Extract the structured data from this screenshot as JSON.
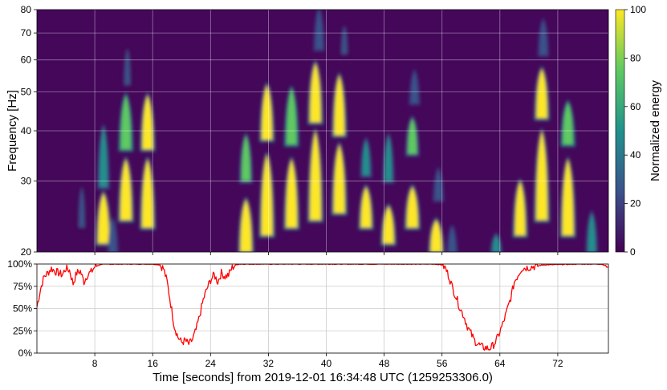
{
  "chart_data": [
    {
      "type": "heatmap",
      "title": "",
      "xlabel": "",
      "ylabel": "Frequency [Hz]",
      "x_range": [
        0,
        79
      ],
      "ylim": [
        20,
        80
      ],
      "y_scale": "log",
      "yticks": [
        20,
        30,
        40,
        50,
        60,
        70,
        80
      ],
      "xticks": [
        8,
        16,
        24,
        32,
        40,
        48,
        56,
        64,
        72
      ],
      "grid": true,
      "colormap": "viridis",
      "background_color": "#44075a",
      "colorbar": {
        "label": "Normalized energy",
        "range": [
          0,
          100
        ],
        "ticks": [
          0,
          20,
          40,
          60,
          80,
          100
        ],
        "stops": [
          "#440154",
          "#3b528b",
          "#21918c",
          "#5ec962",
          "#fde725"
        ]
      },
      "chirps": [
        {
          "t": 9.2,
          "f0": 21,
          "f1": 28,
          "e": 1.0
        },
        {
          "t": 9.2,
          "f0": 29,
          "f1": 41,
          "e": 0.55
        },
        {
          "t": 12.3,
          "f0": 24,
          "f1": 34,
          "e": 1.0
        },
        {
          "t": 12.3,
          "f0": 36,
          "f1": 49,
          "e": 0.85
        },
        {
          "t": 12.5,
          "f0": 52,
          "f1": 64,
          "e": 0.25
        },
        {
          "t": 15.3,
          "f0": 23,
          "f1": 34,
          "e": 1.0
        },
        {
          "t": 15.3,
          "f0": 36,
          "f1": 49,
          "e": 0.9
        },
        {
          "t": 10.5,
          "f0": 20,
          "f1": 24,
          "e": 0.3
        },
        {
          "t": 6.2,
          "f0": 23,
          "f1": 29,
          "e": 0.25
        },
        {
          "t": 28.9,
          "f0": 20,
          "f1": 27,
          "e": 1.0
        },
        {
          "t": 28.9,
          "f0": 30,
          "f1": 39,
          "e": 0.7
        },
        {
          "t": 31.8,
          "f0": 22,
          "f1": 35,
          "e": 1.0
        },
        {
          "t": 31.8,
          "f0": 38,
          "f1": 52,
          "e": 0.9
        },
        {
          "t": 35.2,
          "f0": 23,
          "f1": 34,
          "e": 1.0
        },
        {
          "t": 35.2,
          "f0": 37,
          "f1": 51,
          "e": 0.85
        },
        {
          "t": 38.5,
          "f0": 24,
          "f1": 40,
          "e": 1.0
        },
        {
          "t": 38.5,
          "f0": 42,
          "f1": 59,
          "e": 0.95
        },
        {
          "t": 39.0,
          "f0": 64,
          "f1": 80,
          "e": 0.3
        },
        {
          "t": 41.8,
          "f0": 25,
          "f1": 37,
          "e": 1.0
        },
        {
          "t": 41.8,
          "f0": 39,
          "f1": 55,
          "e": 0.9
        },
        {
          "t": 42.5,
          "f0": 62,
          "f1": 73,
          "e": 0.25
        },
        {
          "t": 45.5,
          "f0": 23,
          "f1": 29,
          "e": 0.9
        },
        {
          "t": 45.5,
          "f0": 31,
          "f1": 38,
          "e": 0.45
        },
        {
          "t": 48.6,
          "f0": 21,
          "f1": 26,
          "e": 0.95
        },
        {
          "t": 48.6,
          "f0": 30,
          "f1": 39,
          "e": 0.45
        },
        {
          "t": 51.9,
          "f0": 23,
          "f1": 29,
          "e": 1.0
        },
        {
          "t": 51.9,
          "f0": 35,
          "f1": 43,
          "e": 0.75
        },
        {
          "t": 52.2,
          "f0": 47,
          "f1": 56,
          "e": 0.3
        },
        {
          "t": 55.2,
          "f0": 20,
          "f1": 24,
          "e": 1.0
        },
        {
          "t": 55.5,
          "f0": 27,
          "f1": 32,
          "e": 0.3
        },
        {
          "t": 63.5,
          "f0": 20,
          "f1": 22,
          "e": 0.5
        },
        {
          "t": 66.8,
          "f0": 22,
          "f1": 30,
          "e": 0.9
        },
        {
          "t": 69.8,
          "f0": 24,
          "f1": 40,
          "e": 1.0
        },
        {
          "t": 69.8,
          "f0": 43,
          "f1": 57,
          "e": 0.95
        },
        {
          "t": 70.0,
          "f0": 62,
          "f1": 75,
          "e": 0.3
        },
        {
          "t": 73.4,
          "f0": 22,
          "f1": 34,
          "e": 1.0
        },
        {
          "t": 73.4,
          "f0": 37,
          "f1": 47,
          "e": 0.85
        },
        {
          "t": 76.7,
          "f0": 20,
          "f1": 25,
          "e": 0.5
        },
        {
          "t": 57.4,
          "f0": 20,
          "f1": 23,
          "e": 0.3
        }
      ]
    },
    {
      "type": "line",
      "title": "",
      "xlabel": "Time [seconds] from 2019-12-01 16:34:48 UTC (1259253306.0)",
      "ylabel": "",
      "xlim": [
        0,
        79
      ],
      "ylim": [
        0,
        100
      ],
      "xticks": [
        8,
        16,
        24,
        32,
        40,
        48,
        56,
        64,
        72
      ],
      "yticks": [
        "0%",
        "25%",
        "50%",
        "75%",
        "100%"
      ],
      "grid": true,
      "color": "#ff0000",
      "series": [
        {
          "x": [
            0,
            0.5,
            1,
            1.5,
            2,
            2.5,
            3,
            3.5,
            4,
            4.5,
            5,
            5.5,
            6,
            6.5,
            7,
            7.5,
            8,
            9,
            10,
            12,
            14,
            16,
            17,
            17.5,
            18,
            18.5,
            19,
            19.5,
            20,
            20.5,
            21,
            21.5,
            22,
            22.5,
            23,
            23.5,
            24,
            24.5,
            25,
            25.5,
            26,
            26.5,
            27,
            27.5,
            28,
            29,
            32,
            40,
            48,
            55,
            56,
            56.5,
            57,
            57.5,
            58,
            58.5,
            59,
            59.5,
            60,
            60.5,
            61,
            61.5,
            62,
            62.5,
            63,
            63.5,
            64,
            64.5,
            65,
            65.5,
            66,
            67,
            70,
            75,
            77,
            78,
            79
          ],
          "values": [
            52,
            72,
            86,
            90,
            95,
            92,
            90,
            88,
            95,
            93,
            78,
            90,
            92,
            80,
            88,
            91,
            97,
            100,
            100,
            100,
            100,
            100,
            99,
            95,
            80,
            55,
            30,
            18,
            12,
            14,
            10,
            15,
            26,
            42,
            60,
            72,
            82,
            88,
            80,
            90,
            86,
            88,
            96,
            99,
            100,
            100,
            100,
            100,
            100,
            100,
            99,
            95,
            85,
            72,
            62,
            50,
            42,
            30,
            22,
            14,
            10,
            7,
            6,
            5,
            8,
            14,
            24,
            35,
            48,
            62,
            80,
            95,
            99,
            100,
            100,
            100,
            97
          ]
        }
      ]
    }
  ]
}
